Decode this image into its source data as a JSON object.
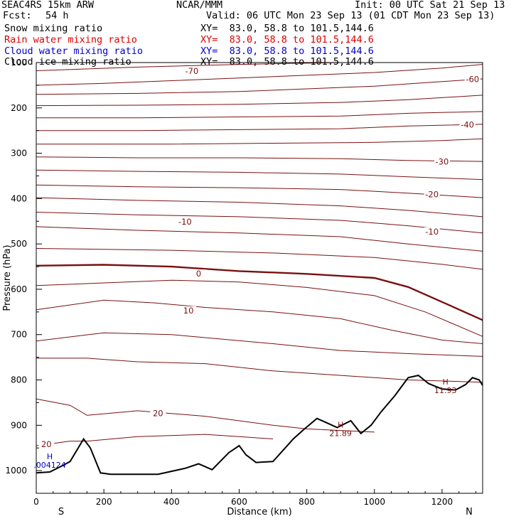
{
  "header": {
    "model": "SEAC4RS 15km ARW",
    "org": "NCAR/MMM",
    "init": "Init: 00 UTC Sat 21 Sep 13",
    "fcst_label": "Fcst:",
    "fcst_value": "54 h",
    "valid": "Valid: 06 UTC Mon 23 Sep 13 (01 CDT Mon 23 Sep 13)"
  },
  "fields": [
    {
      "label": "Snow mixing ratio",
      "xy": "XY=  83.0, 58.8 to 101.5,144.6",
      "color": "#000000"
    },
    {
      "label": "Rain water mixing ratio",
      "xy": "XY=  83.0, 58.8 to 101.5,144.6",
      "color": "#dd0000"
    },
    {
      "label": "Cloud water mixing ratio",
      "xy": "XY=  83.0, 58.8 to 101.5,144.6",
      "color": "#0000cc"
    },
    {
      "label": "Cloud ice mixing ratio",
      "xy": "XY=  83.0, 58.8 to 101.5,144.6",
      "color": "#000000"
    }
  ],
  "chart_data": {
    "type": "line",
    "xlabel": "Distance (km)",
    "ylabel": "Pressure (hPa)",
    "xlim": [
      0,
      1320
    ],
    "ylim": [
      1050,
      100
    ],
    "x_ticks": [
      0,
      200,
      400,
      600,
      800,
      1000,
      1200
    ],
    "y_ticks": [
      100,
      200,
      300,
      400,
      500,
      600,
      700,
      800,
      900,
      1000
    ],
    "endpoint_labels": {
      "left": "S",
      "right": "N"
    },
    "colors": {
      "isotherm": "#7a1010",
      "terrain": "#000000"
    },
    "isotherms": [
      {
        "points": [
          [
            0,
            118
          ],
          [
            300,
            110
          ],
          [
            600,
            104
          ],
          [
            900,
            100
          ],
          [
            1320,
            100
          ]
        ]
      },
      {
        "points": [
          [
            0,
            150
          ],
          [
            200,
            146
          ],
          [
            400,
            140
          ],
          [
            600,
            134
          ],
          [
            800,
            128
          ],
          [
            1000,
            122
          ],
          [
            1200,
            112
          ],
          [
            1320,
            104
          ]
        ],
        "label": "-70",
        "label_at": [
          460,
          122
        ]
      },
      {
        "points": [
          [
            0,
            170
          ],
          [
            300,
            168
          ],
          [
            600,
            164
          ],
          [
            800,
            158
          ],
          [
            1000,
            152
          ],
          [
            1200,
            142
          ],
          [
            1320,
            136
          ]
        ],
        "label": "-60",
        "label_at": [
          1290,
          140
        ]
      },
      {
        "points": [
          [
            0,
            195
          ],
          [
            300,
            194
          ],
          [
            600,
            192
          ],
          [
            900,
            188
          ],
          [
            1100,
            182
          ],
          [
            1320,
            172
          ]
        ]
      },
      {
        "points": [
          [
            0,
            222
          ],
          [
            300,
            222
          ],
          [
            600,
            220
          ],
          [
            900,
            218
          ],
          [
            1100,
            212
          ],
          [
            1320,
            208
          ]
        ]
      },
      {
        "points": [
          [
            0,
            250
          ],
          [
            300,
            250
          ],
          [
            600,
            248
          ],
          [
            900,
            246
          ],
          [
            1100,
            240
          ],
          [
            1320,
            236
          ]
        ],
        "label": "-40",
        "label_at": [
          1275,
          240
        ]
      },
      {
        "points": [
          [
            0,
            280
          ],
          [
            400,
            280
          ],
          [
            700,
            278
          ],
          [
            1000,
            276
          ],
          [
            1200,
            272
          ],
          [
            1320,
            268
          ]
        ]
      },
      {
        "points": [
          [
            0,
            308
          ],
          [
            300,
            310
          ],
          [
            600,
            310
          ],
          [
            900,
            312
          ],
          [
            1100,
            316
          ],
          [
            1320,
            318
          ]
        ],
        "label": "-30",
        "label_at": [
          1200,
          322
        ]
      },
      {
        "points": [
          [
            0,
            337
          ],
          [
            300,
            340
          ],
          [
            600,
            342
          ],
          [
            900,
            346
          ],
          [
            1100,
            352
          ],
          [
            1320,
            358
          ]
        ]
      },
      {
        "points": [
          [
            0,
            370
          ],
          [
            300,
            374
          ],
          [
            600,
            376
          ],
          [
            900,
            380
          ],
          [
            1100,
            388
          ],
          [
            1320,
            398
          ]
        ],
        "label": "-20",
        "label_at": [
          1170,
          394
        ]
      },
      {
        "points": [
          [
            0,
            398
          ],
          [
            300,
            404
          ],
          [
            600,
            408
          ],
          [
            900,
            416
          ],
          [
            1100,
            426
          ],
          [
            1320,
            440
          ]
        ],
        "label": "-10",
        "label_at": [
          1170,
          476
        ]
      },
      {
        "points": [
          [
            0,
            430
          ],
          [
            300,
            436
          ],
          [
            600,
            440
          ],
          [
            900,
            448
          ],
          [
            1100,
            460
          ],
          [
            1320,
            476
          ]
        ]
      },
      {
        "points": [
          [
            0,
            462
          ],
          [
            300,
            470
          ],
          [
            600,
            476
          ],
          [
            900,
            484
          ],
          [
            1100,
            500
          ],
          [
            1320,
            516
          ]
        ],
        "label": "-10",
        "label_at": [
          440,
          454
        ]
      },
      {
        "points": [
          [
            0,
            510
          ],
          [
            400,
            514
          ],
          [
            700,
            520
          ],
          [
            1000,
            530
          ],
          [
            1200,
            545
          ],
          [
            1320,
            556
          ]
        ]
      },
      {
        "points": [
          [
            0,
            548
          ],
          [
            200,
            546
          ],
          [
            400,
            550
          ],
          [
            600,
            560
          ],
          [
            800,
            566
          ],
          [
            1000,
            575
          ],
          [
            1100,
            595
          ],
          [
            1200,
            628
          ],
          [
            1320,
            668
          ]
        ],
        "label": "0",
        "label_at": [
          480,
          569
        ],
        "bold": true
      },
      {
        "points": [
          [
            0,
            592
          ],
          [
            200,
            586
          ],
          [
            400,
            580
          ],
          [
            600,
            584
          ],
          [
            800,
            596
          ],
          [
            1000,
            614
          ],
          [
            1150,
            650
          ],
          [
            1320,
            704
          ]
        ]
      },
      {
        "points": [
          [
            0,
            645
          ],
          [
            200,
            624
          ],
          [
            350,
            630
          ],
          [
            500,
            640
          ],
          [
            700,
            650
          ],
          [
            900,
            665
          ],
          [
            1050,
            690
          ],
          [
            1200,
            712
          ],
          [
            1320,
            720
          ]
        ],
        "label": "10",
        "label_at": [
          450,
          650
        ]
      },
      {
        "points": [
          [
            0,
            714
          ],
          [
            200,
            696
          ],
          [
            400,
            700
          ],
          [
            700,
            720
          ],
          [
            900,
            735
          ],
          [
            1100,
            742
          ],
          [
            1320,
            748
          ]
        ]
      },
      {
        "points": [
          [
            0,
            752
          ],
          [
            150,
            752
          ],
          [
            300,
            760
          ],
          [
            500,
            764
          ],
          [
            700,
            780
          ],
          [
            900,
            790
          ],
          [
            1100,
            800
          ],
          [
            1320,
            805
          ]
        ]
      },
      {
        "points": [
          [
            0,
            842
          ],
          [
            100,
            856
          ],
          [
            150,
            878
          ],
          [
            300,
            868
          ],
          [
            500,
            880
          ],
          [
            700,
            900
          ],
          [
            800,
            908
          ],
          [
            1000,
            915
          ]
        ],
        "label": "20",
        "label_at": [
          360,
          877
        ]
      },
      {
        "points": [
          [
            0,
            945
          ],
          [
            100,
            935
          ],
          [
            150,
            935
          ],
          [
            300,
            925
          ],
          [
            500,
            920
          ],
          [
            600,
            925
          ],
          [
            700,
            930
          ]
        ],
        "label": "20",
        "label_at": [
          30,
          945
        ]
      }
    ],
    "terrain": [
      [
        0,
        1005
      ],
      [
        40,
        1003
      ],
      [
        80,
        988
      ],
      [
        100,
        980
      ],
      [
        140,
        930
      ],
      [
        160,
        950
      ],
      [
        190,
        1005
      ],
      [
        220,
        1008
      ],
      [
        360,
        1008
      ],
      [
        440,
        995
      ],
      [
        480,
        985
      ],
      [
        520,
        998
      ],
      [
        550,
        975
      ],
      [
        570,
        960
      ],
      [
        600,
        945
      ],
      [
        620,
        965
      ],
      [
        650,
        982
      ],
      [
        700,
        980
      ],
      [
        730,
        955
      ],
      [
        760,
        930
      ],
      [
        790,
        910
      ],
      [
        830,
        885
      ],
      [
        860,
        895
      ],
      [
        890,
        905
      ],
      [
        930,
        890
      ],
      [
        960,
        918
      ],
      [
        990,
        900
      ],
      [
        1020,
        870
      ],
      [
        1060,
        835
      ],
      [
        1100,
        795
      ],
      [
        1130,
        790
      ],
      [
        1160,
        808
      ],
      [
        1200,
        820
      ],
      [
        1240,
        822
      ],
      [
        1270,
        810
      ],
      [
        1290,
        795
      ],
      [
        1310,
        800
      ],
      [
        1320,
        812
      ]
    ],
    "extrema": [
      {
        "symbol": "H",
        "value": ".004124",
        "x": 40,
        "p": 975,
        "color": "#0000cc"
      },
      {
        "symbol": "H",
        "value": "21.89",
        "x": 900,
        "p": 905,
        "color": "#7a1010"
      },
      {
        "symbol": "H",
        "value": "11.93",
        "x": 1210,
        "p": 810,
        "color": "#7a1010"
      }
    ]
  }
}
